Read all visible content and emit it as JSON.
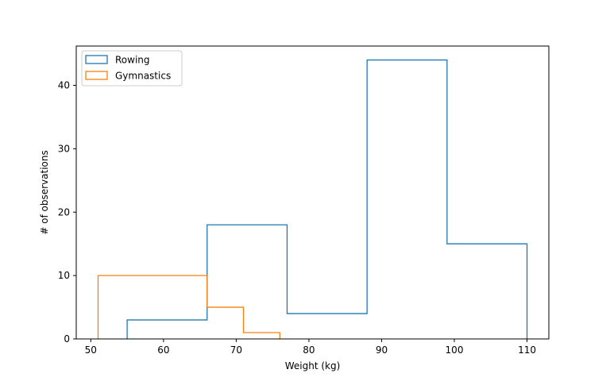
{
  "chart_data": {
    "type": "histogram",
    "xlabel": "Weight (kg)",
    "ylabel": "# of observations",
    "xlim": [
      48,
      113
    ],
    "ylim": [
      0,
      46.2
    ],
    "xticks": [
      50,
      60,
      70,
      80,
      90,
      100,
      110
    ],
    "yticks": [
      0,
      10,
      20,
      30,
      40
    ],
    "grid": false,
    "legend_position": "top-left",
    "series": [
      {
        "name": "Rowing",
        "color": "#1f77b4",
        "histtype": "step",
        "bins": [
          {
            "start": 55,
            "end": 66,
            "count": 3
          },
          {
            "start": 66,
            "end": 77,
            "count": 18
          },
          {
            "start": 77,
            "end": 88,
            "count": 4
          },
          {
            "start": 88,
            "end": 99,
            "count": 44
          },
          {
            "start": 99,
            "end": 110,
            "count": 15
          }
        ]
      },
      {
        "name": "Gymnastics",
        "color": "#ff7f0e",
        "histtype": "step",
        "bins": [
          {
            "start": 51,
            "end": 66,
            "count": 10
          },
          {
            "start": 66,
            "end": 71,
            "count": 5
          },
          {
            "start": 71,
            "end": 76,
            "count": 1
          }
        ]
      }
    ]
  }
}
